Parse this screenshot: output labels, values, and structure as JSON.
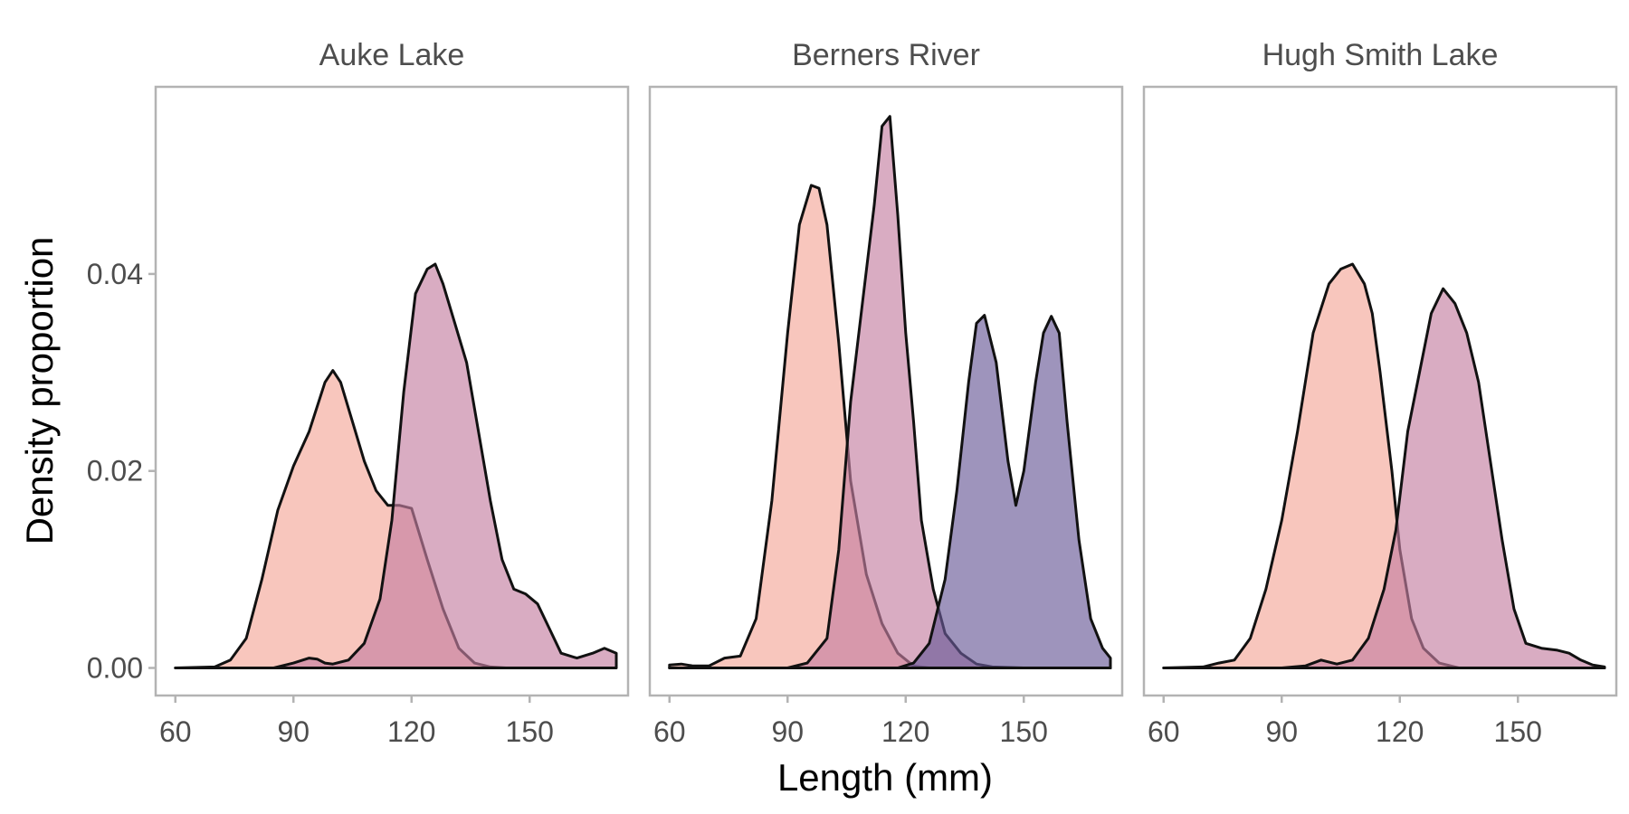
{
  "chart_data": {
    "type": "area",
    "subtype": "density",
    "xlabel": "Length (mm)",
    "ylabel": "Density proportion",
    "xlim": [
      55,
      175
    ],
    "ylim": [
      -0.0028,
      0.059
    ],
    "xticks": [
      60,
      90,
      120,
      150
    ],
    "yticks": [
      0.0,
      0.02,
      0.04
    ],
    "ytick_labels": [
      "0.00",
      "0.02",
      "0.04"
    ],
    "grid": false,
    "legend": "none",
    "palette": [
      "#f4a79a",
      "#c57fa1",
      "#6a5a98"
    ],
    "opacity": 0.65,
    "panels": [
      {
        "title": "Auke Lake",
        "series": [
          {
            "color": "#f4a79a",
            "x": [
              60,
              70,
              74,
              78,
              82,
              86,
              90,
              94,
              98,
              100,
              102,
              105,
              108,
              111,
              114,
              117,
              120,
              124,
              128,
              132,
              136,
              140,
              144,
              148,
              152,
              156,
              160,
              170
            ],
            "y": [
              0,
              0.0001,
              0.0008,
              0.003,
              0.009,
              0.016,
              0.0205,
              0.024,
              0.029,
              0.0302,
              0.029,
              0.025,
              0.021,
              0.018,
              0.0165,
              0.0165,
              0.0162,
              0.011,
              0.006,
              0.002,
              0.0005,
              0.0001,
              0,
              0,
              0,
              0,
              0,
              0
            ]
          },
          {
            "color": "#c57fa1",
            "x": [
              60,
              85,
              90,
              94,
              96,
              98,
              100,
              104,
              108,
              112,
              115,
              118,
              121,
              124,
              126,
              128,
              131,
              134,
              137,
              140,
              143,
              146,
              149,
              152,
              155,
              158,
              162,
              166,
              169,
              172
            ],
            "y": [
              0,
              0,
              0.0005,
              0.001,
              0.0009,
              0.0005,
              0.0004,
              0.0008,
              0.0025,
              0.007,
              0.015,
              0.028,
              0.038,
              0.0405,
              0.041,
              0.039,
              0.035,
              0.031,
              0.024,
              0.017,
              0.011,
              0.008,
              0.0075,
              0.0065,
              0.004,
              0.0015,
              0.001,
              0.0015,
              0.002,
              0.0015
            ]
          }
        ]
      },
      {
        "title": "Berners River",
        "series": [
          {
            "color": "#f4a79a",
            "x": [
              60,
              63,
              66,
              70,
              74,
              78,
              82,
              86,
              90,
              93,
              96,
              98,
              100,
              103,
              106,
              110,
              114,
              118,
              122,
              126,
              130,
              140,
              160,
              172
            ],
            "y": [
              0.0003,
              0.0004,
              0.0002,
              0.0002,
              0.001,
              0.0012,
              0.005,
              0.017,
              0.034,
              0.045,
              0.049,
              0.0487,
              0.045,
              0.033,
              0.019,
              0.0095,
              0.0045,
              0.0015,
              0.0002,
              0,
              0,
              0,
              0,
              0
            ]
          },
          {
            "color": "#c57fa1",
            "x": [
              60,
              90,
              95,
              100,
              103,
              106,
              109,
              112,
              114,
              116,
              118,
              120,
              122,
              124,
              127,
              130,
              134,
              138,
              142,
              150,
              172
            ],
            "y": [
              0,
              0,
              0.0005,
              0.003,
              0.012,
              0.027,
              0.037,
              0.047,
              0.055,
              0.056,
              0.046,
              0.034,
              0.025,
              0.015,
              0.008,
              0.0035,
              0.0015,
              0.0004,
              0.0001,
              0,
              0
            ]
          },
          {
            "color": "#6a5a98",
            "x": [
              60,
              110,
              118,
              122,
              126,
              130,
              133,
              136,
              138,
              140,
              143,
              146,
              148,
              150,
              153,
              155,
              157,
              159,
              161,
              164,
              167,
              170,
              172
            ],
            "y": [
              0,
              0,
              0,
              0.0005,
              0.0025,
              0.009,
              0.018,
              0.029,
              0.035,
              0.0358,
              0.031,
              0.021,
              0.0165,
              0.02,
              0.029,
              0.034,
              0.0357,
              0.034,
              0.025,
              0.013,
              0.005,
              0.002,
              0.001
            ]
          }
        ]
      },
      {
        "title": "Hugh Smith Lake",
        "series": [
          {
            "color": "#f4a79a",
            "x": [
              60,
              70,
              74,
              78,
              82,
              86,
              90,
              94,
              98,
              102,
              105,
              108,
              111,
              113,
              115,
              118,
              120,
              123,
              126,
              130,
              135,
              150,
              172
            ],
            "y": [
              0,
              0.0001,
              0.0005,
              0.0008,
              0.003,
              0.008,
              0.015,
              0.024,
              0.034,
              0.039,
              0.0405,
              0.041,
              0.039,
              0.036,
              0.03,
              0.02,
              0.012,
              0.005,
              0.002,
              0.0005,
              0,
              0,
              0
            ]
          },
          {
            "color": "#c57fa1",
            "x": [
              60,
              90,
              96,
              100,
              104,
              108,
              112,
              116,
              119,
              122,
              125,
              128,
              131,
              134,
              137,
              140,
              143,
              146,
              149,
              152,
              156,
              160,
              163,
              166,
              169,
              172
            ],
            "y": [
              0,
              0,
              0.0002,
              0.0008,
              0.0004,
              0.0008,
              0.003,
              0.008,
              0.014,
              0.024,
              0.03,
              0.036,
              0.0385,
              0.037,
              0.034,
              0.029,
              0.021,
              0.013,
              0.006,
              0.0025,
              0.002,
              0.0018,
              0.0015,
              0.0008,
              0.0003,
              0.0001
            ]
          }
        ]
      }
    ]
  }
}
